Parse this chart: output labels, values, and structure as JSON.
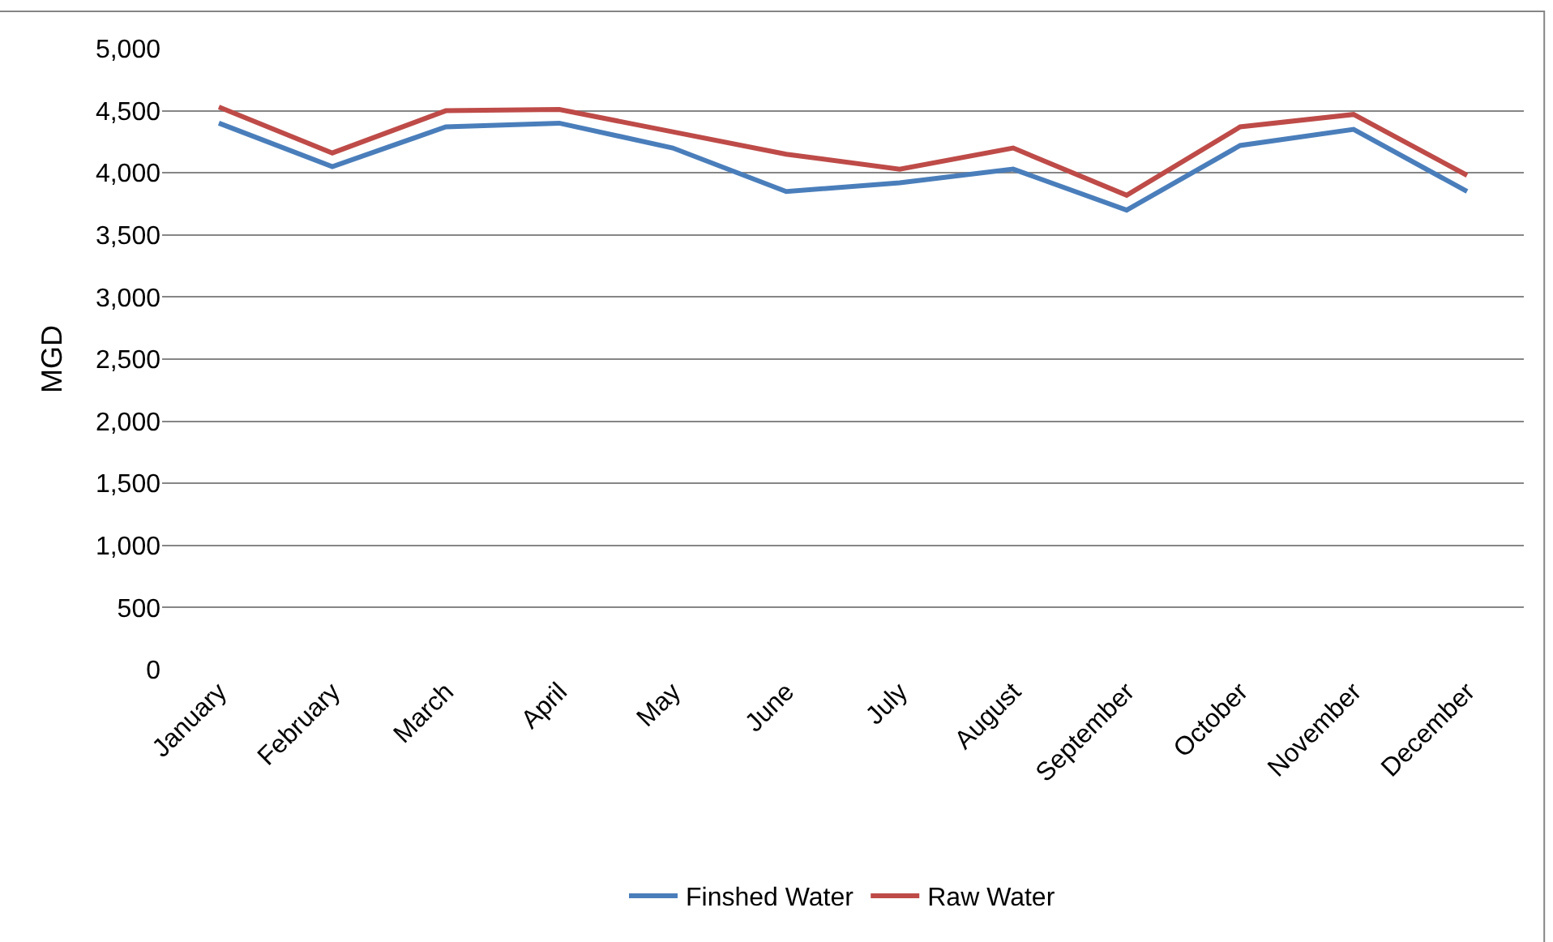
{
  "chart_data": {
    "type": "line",
    "ylabel": "MGD",
    "categories": [
      "January",
      "February",
      "March",
      "April",
      "May",
      "June",
      "July",
      "August",
      "September",
      "October",
      "November",
      "December"
    ],
    "series": [
      {
        "name": "Finshed Water",
        "color": "#4a7ebb",
        "values": [
          4400,
          4050,
          4370,
          4400,
          4200,
          3850,
          3920,
          4030,
          3700,
          4220,
          4350,
          3850
        ]
      },
      {
        "name": "Raw Water",
        "color": "#be4b48",
        "values": [
          4530,
          4160,
          4500,
          4510,
          4330,
          4150,
          4030,
          4200,
          3820,
          4370,
          4470,
          3980
        ]
      }
    ],
    "ylim": [
      0,
      5000
    ],
    "yticks": [
      {
        "value": 0,
        "label": "0"
      },
      {
        "value": 500,
        "label": "500"
      },
      {
        "value": 1000,
        "label": "1,000"
      },
      {
        "value": 1500,
        "label": "1,500"
      },
      {
        "value": 2000,
        "label": "2,000"
      },
      {
        "value": 2500,
        "label": "2,500"
      },
      {
        "value": 3000,
        "label": "3,000"
      },
      {
        "value": 3500,
        "label": "3,500"
      },
      {
        "value": 4000,
        "label": "4,000"
      },
      {
        "value": 4500,
        "label": "4,500"
      },
      {
        "value": 5000,
        "label": "5,000"
      }
    ],
    "grid": "y",
    "legend": "bottom",
    "marker": "none",
    "line_style": "solid"
  }
}
